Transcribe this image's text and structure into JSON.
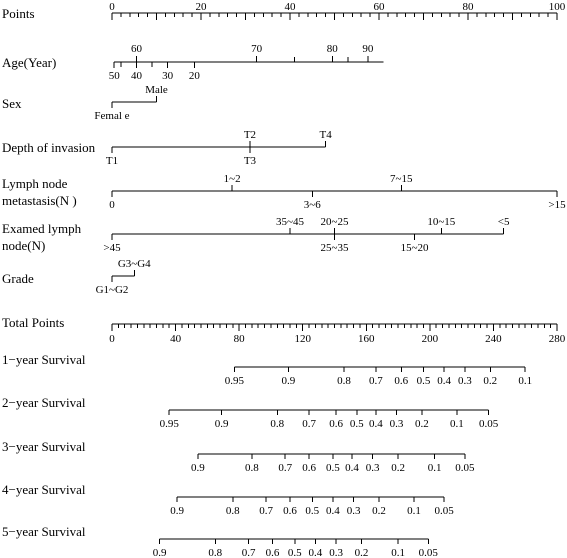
{
  "nomogram": {
    "scales": [
      {
        "label": "Points",
        "min_label": 0,
        "max_label": 100,
        "labels": [
          "0",
          "20",
          "40",
          "60",
          "80",
          "100"
        ],
        "label_values": [
          0,
          20,
          40,
          60,
          80,
          100
        ]
      },
      {
        "label": "Age(Year)",
        "above": [
          [
            "60",
            5.5
          ],
          [
            "70",
            32.5
          ],
          [
            "80",
            49.5
          ],
          [
            "90",
            57.5
          ]
        ],
        "below": [
          [
            "50",
            0.5
          ],
          [
            "40",
            5.5
          ],
          [
            "30",
            12.5
          ],
          [
            "20",
            18.5
          ]
        ]
      },
      {
        "label": "Sex",
        "above": [
          [
            "Male",
            10
          ]
        ],
        "below": [
          [
            "Femal e",
            0
          ]
        ]
      },
      {
        "label": "Depth of invasion",
        "above": [
          [
            "T2",
            31
          ],
          [
            "T4",
            48
          ]
        ],
        "below": [
          [
            "T1",
            0
          ],
          [
            "T3",
            31
          ]
        ]
      },
      {
        "label_lines": [
          "Lymph node",
          "metastasis(N )"
        ],
        "above": [
          [
            "1~2",
            27
          ],
          [
            "7~15",
            65
          ]
        ],
        "below": [
          [
            "0",
            0
          ],
          [
            "3~6",
            45
          ],
          [
            ">15",
            100
          ]
        ]
      },
      {
        "label_lines": [
          "Examed lymph",
          "node(N)"
        ],
        "above": [
          [
            "35~45",
            40
          ],
          [
            "20~25",
            50
          ],
          [
            "10~15",
            74
          ],
          [
            "<5",
            88
          ]
        ],
        "below": [
          [
            ">45",
            0
          ],
          [
            "25~35",
            50
          ],
          [
            "15~20",
            68
          ]
        ]
      },
      {
        "label": "Grade",
        "above": [
          [
            "G3~G4",
            5
          ]
        ],
        "below": [
          [
            "G1~G2",
            0
          ]
        ]
      },
      {
        "label": "Total Points",
        "labels": [
          "0",
          "40",
          "80",
          "120",
          "160",
          "200",
          "240",
          "280"
        ],
        "label_values": [
          0,
          40,
          80,
          120,
          160,
          200,
          240,
          280
        ]
      }
    ],
    "survival": [
      {
        "label": "1−year Survival",
        "labels": [
          "0.95",
          "0.9",
          "0.8",
          "0.7",
          "0.6",
          "0.5",
          "0.4",
          "0.3",
          "0.2",
          "0.1"
        ],
        "at_total": [
          77,
          111,
          146,
          166,
          182,
          196,
          209,
          222,
          238,
          260
        ]
      },
      {
        "label": "2−year Survival",
        "labels": [
          "0.95",
          "0.9",
          "0.8",
          "0.7",
          "0.6",
          "0.5",
          "0.4",
          "0.3",
          "0.2",
          "0.1",
          "0.05"
        ],
        "at_total": [
          36,
          69,
          104,
          124,
          141,
          154,
          166,
          179,
          195,
          217,
          237
        ]
      },
      {
        "label": "3−year Survival",
        "labels": [
          "0.9",
          "0.8",
          "0.7",
          "0.6",
          "0.5",
          "0.4",
          "0.3",
          "0.2",
          "0.1",
          "0.05"
        ],
        "at_total": [
          54,
          88,
          109,
          124,
          139,
          151,
          164,
          180,
          203,
          222
        ]
      },
      {
        "label": "4−year Survival",
        "labels": [
          "0.9",
          "0.8",
          "0.7",
          "0.6",
          "0.5",
          "0.4",
          "0.3",
          "0.2",
          "0.1",
          "0.05"
        ],
        "at_total": [
          41,
          76,
          97,
          112,
          126,
          139,
          152,
          168,
          190,
          209
        ]
      },
      {
        "label": "5−year Survival",
        "labels": [
          "0.9",
          "0.8",
          "0.7",
          "0.6",
          "0.5",
          "0.4",
          "0.3",
          "0.2",
          "0.1",
          "0.05"
        ],
        "at_total": [
          30,
          65,
          86,
          101,
          115,
          128,
          141,
          157,
          180,
          199
        ]
      }
    ]
  }
}
